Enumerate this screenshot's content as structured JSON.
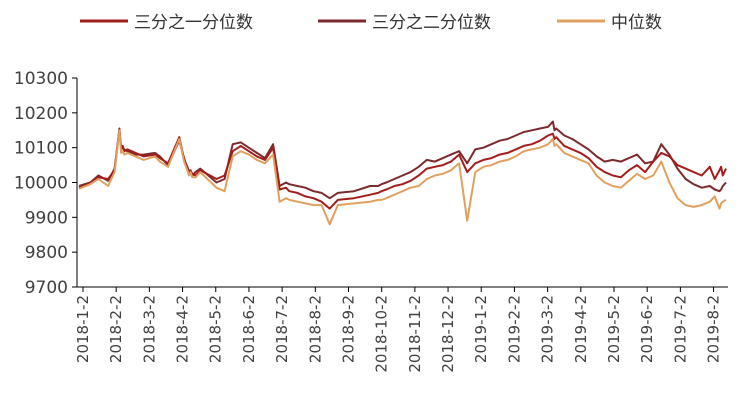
{
  "chart_data": {
    "type": "line",
    "title": "",
    "xlabel": "",
    "ylabel": "",
    "ylim": [
      9700,
      10300
    ],
    "yticks": [
      9700,
      9800,
      9900,
      10000,
      10100,
      10200,
      10300
    ],
    "grid": false,
    "legend_position": "top",
    "categories": [
      "2018-1-2",
      "2018-2-2",
      "2018-3-2",
      "2018-4-2",
      "2018-5-2",
      "2018-6-2",
      "2018-7-2",
      "2018-8-2",
      "2018-9-2",
      "2018-10-2",
      "2018-11-2",
      "2018-12-2",
      "2019-1-2",
      "2019-2-2",
      "2019-3-2",
      "2019-4-2",
      "2019-5-2",
      "2019-6-2",
      "2019-7-2",
      "2019-8-2"
    ],
    "x": [
      0,
      7,
      12,
      18,
      22,
      25,
      26,
      27,
      28,
      30,
      35,
      40,
      47,
      50,
      55,
      62,
      65,
      67,
      68,
      69,
      70,
      72,
      75,
      85,
      90,
      95,
      100,
      105,
      110,
      115,
      120,
      124,
      128,
      130,
      135,
      140,
      145,
      150,
      155,
      160,
      170,
      180,
      185,
      187,
      190,
      195,
      200,
      205,
      210,
      215,
      220,
      225,
      230,
      235,
      240,
      245,
      250,
      255,
      260,
      265,
      270,
      275,
      280,
      285,
      290,
      293,
      294,
      295,
      300,
      305,
      310,
      315,
      320,
      325,
      330,
      335,
      340,
      345,
      350,
      355,
      360,
      365,
      370,
      375,
      380,
      385,
      390,
      393,
      396,
      397,
      398,
      400
    ],
    "series": [
      {
        "name": "三分之一分位数",
        "color": "#a31d1d",
        "values": [
          9985,
          9998,
          10015,
          10010,
          10035,
          10155,
          10095,
          10105,
          10090,
          10095,
          10085,
          10075,
          10080,
          10070,
          10055,
          10130,
          10065,
          10045,
          10030,
          10035,
          10025,
          10020,
          10035,
          10010,
          10020,
          10090,
          10105,
          10090,
          10075,
          10065,
          10100,
          9980,
          9985,
          9975,
          9970,
          9960,
          9955,
          9945,
          9925,
          9950,
          9955,
          9965,
          9970,
          9975,
          9980,
          9990,
          9995,
          10005,
          10020,
          10040,
          10045,
          10050,
          10060,
          10080,
          10030,
          10055,
          10065,
          10070,
          10080,
          10085,
          10095,
          10105,
          10110,
          10120,
          10135,
          10140,
          10125,
          10130,
          10105,
          10095,
          10085,
          10070,
          10045,
          10030,
          10020,
          10015,
          10035,
          10050,
          10030,
          10060,
          10085,
          10075,
          10050,
          10040,
          10030,
          10020,
          10045,
          10010,
          10035,
          10045,
          10020,
          10040
        ]
      },
      {
        "name": "三分之二分位数",
        "color": "#7b2a2d",
        "values": [
          9990,
          10000,
          10020,
          10005,
          10040,
          10150,
          10100,
          10100,
          10095,
          10090,
          10080,
          10080,
          10085,
          10075,
          10050,
          10120,
          10070,
          10040,
          10035,
          10030,
          10020,
          10030,
          10040,
          10000,
          10010,
          10110,
          10115,
          10100,
          10085,
          10070,
          10110,
          9990,
          10000,
          9995,
          9990,
          9985,
          9975,
          9970,
          9955,
          9970,
          9975,
          9990,
          9990,
          9995,
          10000,
          10010,
          10020,
          10030,
          10045,
          10065,
          10060,
          10070,
          10080,
          10090,
          10055,
          10095,
          10100,
          10110,
          10120,
          10125,
          10135,
          10145,
          10150,
          10155,
          10160,
          10175,
          10150,
          10155,
          10135,
          10125,
          10110,
          10095,
          10075,
          10060,
          10065,
          10060,
          10070,
          10080,
          10055,
          10060,
          10110,
          10080,
          10040,
          10010,
          9995,
          9985,
          9990,
          9980,
          9975,
          9980,
          9990,
          10000
        ]
      },
      {
        "name": "中位数",
        "color": "#e0a060",
        "values": [
          9982,
          9995,
          10010,
          9990,
          10030,
          10150,
          10085,
          10090,
          10080,
          10085,
          10075,
          10065,
          10075,
          10060,
          10045,
          10125,
          10060,
          10035,
          10020,
          10030,
          10015,
          10015,
          10030,
          9985,
          9975,
          10075,
          10090,
          10080,
          10065,
          10055,
          10080,
          9945,
          9955,
          9950,
          9945,
          9940,
          9935,
          9935,
          9880,
          9935,
          9940,
          9945,
          9950,
          9950,
          9955,
          9965,
          9975,
          9985,
          9990,
          10010,
          10020,
          10025,
          10035,
          10055,
          9890,
          10030,
          10045,
          10050,
          10060,
          10065,
          10075,
          10090,
          10095,
          10100,
          10110,
          10125,
          10105,
          10110,
          10085,
          10075,
          10065,
          10055,
          10020,
          10000,
          9990,
          9985,
          10005,
          10025,
          10010,
          10020,
          10060,
          10000,
          9955,
          9935,
          9930,
          9935,
          9945,
          9960,
          9925,
          9940,
          9945,
          9950
        ]
      }
    ]
  }
}
